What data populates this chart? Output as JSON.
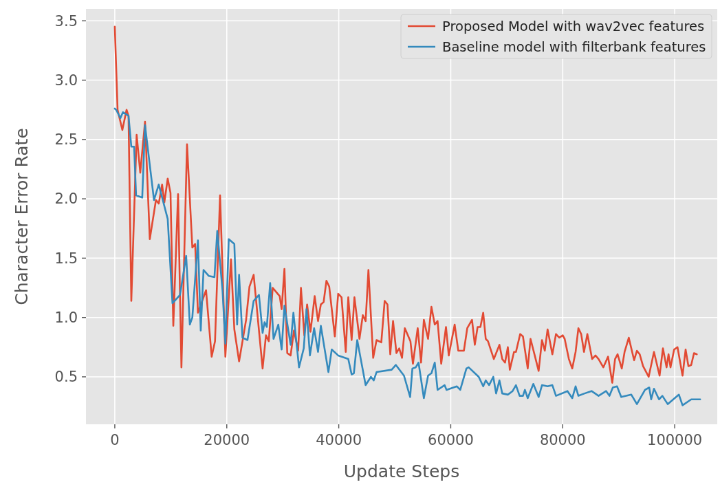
{
  "chart_data": {
    "type": "line",
    "xlabel": "Update Steps",
    "ylabel": "Character Error Rate",
    "xlim": [
      -5150,
      107600
    ],
    "ylim": [
      0.1,
      3.6
    ],
    "xticks": [
      0,
      20000,
      40000,
      60000,
      80000,
      100000
    ],
    "yticks": [
      {
        "value": 0.5,
        "label": "0.5"
      },
      {
        "value": 1.0,
        "label": "1.0"
      },
      {
        "value": 1.5,
        "label": "1.5"
      },
      {
        "value": 2.0,
        "label": "2.0"
      },
      {
        "value": 2.5,
        "label": "2.5"
      },
      {
        "value": 3.0,
        "label": "3.0"
      },
      {
        "value": 3.5,
        "label": "3.5"
      }
    ],
    "grid": true,
    "legend": "top right",
    "line_style": "solid",
    "series": [
      {
        "name": "Proposed Model with wav2vec features",
        "color": "#e24a33",
        "x": [
          0,
          500,
          1350,
          2100,
          2450,
          2950,
          3900,
          4550,
          5400,
          6250,
          7350,
          7850,
          8450,
          8850,
          9450,
          9950,
          10450,
          11300,
          11900,
          12900,
          13850,
          14350,
          14850,
          16300,
          17300,
          17900,
          18800,
          19750,
          20750,
          21350,
          22200,
          23450,
          24050,
          24800,
          26400,
          27000,
          27500,
          28200,
          29450,
          29800,
          30300,
          30800,
          31400,
          32000,
          32750,
          33250,
          33850,
          34350,
          34950,
          35700,
          36300,
          36800,
          37300,
          37800,
          38300,
          39300,
          39900,
          40500,
          41250,
          41700,
          42300,
          42800,
          43700,
          44300,
          44800,
          45300,
          46150,
          46750,
          47600,
          48200,
          48700,
          49200,
          49700,
          50300,
          50800,
          51300,
          51800,
          52800,
          53250,
          54100,
          54700,
          55200,
          55950,
          56550,
          57150,
          57650,
          58300,
          59150,
          59650,
          60700,
          61350,
          62350,
          62950,
          63800,
          64300,
          64800,
          65300,
          65800,
          66250,
          66650,
          67700,
          68700,
          69200,
          69700,
          70200,
          70550,
          71300,
          71650,
          72400,
          72900,
          73750,
          74250,
          74950,
          75700,
          76300,
          76800,
          77300,
          78150,
          78800,
          79400,
          80000,
          80350,
          81100,
          81700,
          82300,
          82800,
          83300,
          83800,
          84400,
          85250,
          85850,
          86400,
          87250,
          88100,
          88850,
          89350,
          89800,
          90550,
          91050,
          91800,
          92750,
          93250,
          93750,
          94350,
          95350,
          96300,
          97300,
          97900,
          98550,
          98900,
          99250,
          99900,
          100500,
          101400,
          101950,
          102450,
          102950,
          103450,
          103950
        ],
        "values": [
          3.45,
          2.75,
          2.58,
          2.75,
          2.7,
          1.14,
          2.54,
          2.22,
          2.65,
          1.66,
          1.99,
          1.96,
          2.12,
          1.97,
          2.17,
          2.05,
          0.93,
          2.04,
          0.58,
          2.46,
          1.59,
          1.62,
          1.04,
          1.23,
          0.67,
          0.8,
          2.03,
          0.67,
          1.49,
          0.9,
          0.63,
          0.98,
          1.26,
          1.36,
          0.57,
          0.85,
          0.8,
          1.25,
          1.18,
          1.07,
          1.41,
          0.7,
          0.68,
          0.89,
          0.72,
          1.25,
          0.85,
          1.11,
          0.88,
          1.18,
          0.97,
          1.11,
          1.13,
          1.31,
          1.26,
          0.84,
          1.2,
          1.17,
          0.71,
          1.17,
          0.81,
          1.17,
          0.82,
          1.02,
          0.97,
          1.4,
          0.66,
          0.81,
          0.79,
          1.14,
          1.11,
          0.69,
          0.97,
          0.7,
          0.74,
          0.66,
          0.91,
          0.8,
          0.61,
          0.91,
          0.62,
          0.98,
          0.82,
          1.09,
          0.94,
          0.97,
          0.61,
          0.92,
          0.68,
          0.94,
          0.72,
          0.72,
          0.91,
          0.98,
          0.77,
          0.92,
          0.92,
          1.04,
          0.82,
          0.8,
          0.65,
          0.77,
          0.65,
          0.62,
          0.75,
          0.56,
          0.71,
          0.71,
          0.86,
          0.84,
          0.57,
          0.82,
          0.69,
          0.55,
          0.81,
          0.72,
          0.9,
          0.69,
          0.86,
          0.83,
          0.85,
          0.82,
          0.65,
          0.57,
          0.71,
          0.91,
          0.86,
          0.71,
          0.86,
          0.65,
          0.68,
          0.65,
          0.58,
          0.67,
          0.45,
          0.65,
          0.69,
          0.57,
          0.71,
          0.83,
          0.64,
          0.72,
          0.69,
          0.59,
          0.5,
          0.71,
          0.51,
          0.74,
          0.58,
          0.69,
          0.58,
          0.73,
          0.75,
          0.51,
          0.73,
          0.59,
          0.6,
          0.7,
          0.69
        ]
      },
      {
        "name": "Baseline model with filterbank features",
        "color": "#348abd",
        "x": [
          0,
          250,
          1000,
          1450,
          2450,
          2950,
          3450,
          3800,
          4900,
          5400,
          7000,
          7850,
          9450,
          10300,
          11650,
          12750,
          13400,
          13850,
          14850,
          15350,
          15850,
          16800,
          17800,
          18300,
          19250,
          19750,
          20350,
          21350,
          21850,
          22200,
          22800,
          23700,
          24800,
          25750,
          26400,
          26750,
          27150,
          27750,
          28350,
          29200,
          29800,
          30300,
          31400,
          31900,
          32900,
          33750,
          34250,
          34850,
          35600,
          36300,
          36800,
          38150,
          38750,
          39900,
          41700,
          42300,
          42700,
          43300,
          44800,
          45750,
          46250,
          46750,
          49450,
          50200,
          51650,
          52750,
          53150,
          53750,
          54250,
          55200,
          55950,
          56550,
          57150,
          57650,
          58900,
          59250,
          61100,
          61700,
          62800,
          63200,
          65000,
          65800,
          66250,
          66850,
          67600,
          68100,
          68700,
          69200,
          70200,
          71050,
          71650,
          72300,
          72900,
          73250,
          73750,
          74750,
          75700,
          76300,
          77300,
          78150,
          78800,
          80850,
          81700,
          82300,
          82800,
          83900,
          85150,
          86400,
          87750,
          88350,
          88950,
          89700,
          90450,
          92250,
          93250,
          94700,
          95450,
          95800,
          96300,
          97200,
          97800,
          98750,
          100750,
          101400,
          102950,
          104550
        ],
        "values": [
          2.76,
          2.75,
          2.68,
          2.73,
          2.7,
          2.44,
          2.44,
          2.03,
          2.01,
          2.62,
          1.99,
          2.12,
          1.83,
          1.12,
          1.19,
          1.52,
          0.94,
          1.0,
          1.65,
          0.89,
          1.4,
          1.35,
          1.34,
          1.73,
          1.22,
          0.78,
          1.66,
          1.62,
          0.94,
          1.36,
          0.83,
          0.81,
          1.14,
          1.19,
          0.87,
          0.96,
          0.92,
          1.29,
          0.82,
          0.94,
          0.73,
          1.1,
          0.77,
          1.04,
          0.58,
          0.74,
          1.07,
          0.68,
          0.91,
          0.71,
          0.93,
          0.54,
          0.73,
          0.68,
          0.65,
          0.52,
          0.53,
          0.81,
          0.43,
          0.5,
          0.47,
          0.54,
          0.56,
          0.6,
          0.51,
          0.33,
          0.57,
          0.58,
          0.62,
          0.32,
          0.51,
          0.53,
          0.62,
          0.39,
          0.43,
          0.39,
          0.42,
          0.39,
          0.57,
          0.58,
          0.5,
          0.42,
          0.47,
          0.43,
          0.5,
          0.36,
          0.47,
          0.36,
          0.35,
          0.38,
          0.43,
          0.34,
          0.34,
          0.39,
          0.32,
          0.44,
          0.33,
          0.43,
          0.42,
          0.43,
          0.34,
          0.38,
          0.32,
          0.42,
          0.34,
          0.36,
          0.38,
          0.34,
          0.38,
          0.34,
          0.41,
          0.42,
          0.33,
          0.35,
          0.27,
          0.39,
          0.41,
          0.31,
          0.4,
          0.31,
          0.34,
          0.27,
          0.35,
          0.26,
          0.31,
          0.31
        ]
      }
    ]
  }
}
